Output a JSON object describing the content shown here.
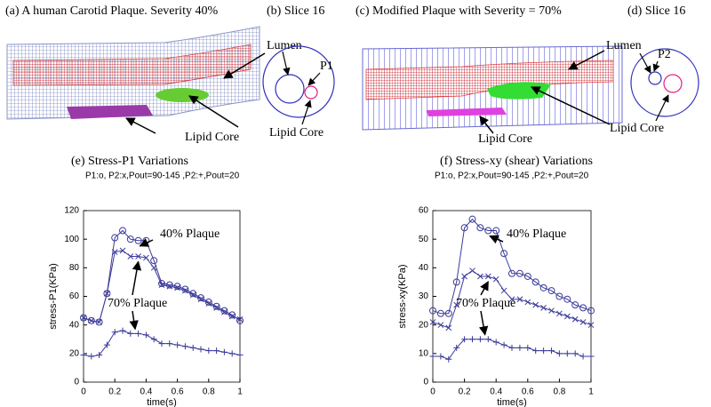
{
  "panels": [
    {
      "title": "(a) A human Carotid Plaque.  Severity 40%",
      "labels": [
        "Lumen",
        "Lipid Core"
      ]
    },
    {
      "title": "(b) Slice 16",
      "labels": [
        "P1",
        "Lipid Core"
      ]
    },
    {
      "title": "(c) Modified  Plaque with Severity = 70%",
      "labels": [
        "Lumen",
        "Lipid Core"
      ]
    },
    {
      "title": "(d) Slice 16",
      "labels": [
        "P2",
        "Lipid Core"
      ]
    }
  ],
  "chart_data": [
    {
      "type": "line",
      "title": "(e) Stress-P1 Variations",
      "subtitle": "P1:o, P2:x,Pout=90-145 ,P2:+,Pout=20",
      "x_label": "time(s)",
      "y_label": "stress-P1(KPa)",
      "x": [
        0,
        0.05,
        0.1,
        0.15,
        0.2,
        0.25,
        0.3,
        0.35,
        0.4,
        0.45,
        0.5,
        0.55,
        0.6,
        0.65,
        0.7,
        0.75,
        0.8,
        0.85,
        0.9,
        0.95,
        1
      ],
      "series": [
        {
          "marker": "o",
          "color": "#3a3a9a",
          "values": [
            45,
            43,
            42,
            62,
            101,
            106,
            100,
            99,
            99,
            85,
            69,
            68,
            67,
            65,
            62,
            59,
            56,
            53,
            50,
            47,
            43
          ]
        },
        {
          "marker": "x",
          "color": "#3a3a9a",
          "values": [
            45,
            43,
            42,
            62,
            91,
            92,
            88,
            88,
            87,
            80,
            68,
            67,
            66,
            64,
            61,
            58,
            55,
            52,
            49,
            46,
            44
          ]
        },
        {
          "marker": "+",
          "color": "#3a3a9a",
          "values": [
            19,
            18,
            19,
            26,
            35,
            36,
            34,
            34,
            33,
            30,
            27,
            27,
            26,
            25,
            24,
            23,
            22,
            22,
            21,
            20,
            19
          ]
        }
      ],
      "annotations": [
        "40% Plaque",
        "70% Plaque"
      ],
      "xlim": [
        0,
        1
      ],
      "xticks": [
        0,
        0.2,
        0.4,
        0.6,
        0.8,
        1
      ],
      "ylim": [
        0,
        120
      ],
      "yticks": [
        0,
        20,
        40,
        60,
        80,
        100,
        120
      ]
    },
    {
      "type": "line",
      "title": "(f) Stress-xy (shear) Variations",
      "subtitle": "P1:o, P2:x,Pout=90-145 ,P2:+,Pout=20",
      "x_label": "time(s)",
      "y_label": "stress-xy(KPa)",
      "x": [
        0,
        0.05,
        0.1,
        0.15,
        0.2,
        0.25,
        0.3,
        0.35,
        0.4,
        0.45,
        0.5,
        0.55,
        0.6,
        0.65,
        0.7,
        0.75,
        0.8,
        0.85,
        0.9,
        0.95,
        1
      ],
      "series": [
        {
          "marker": "o",
          "color": "#3a3a9a",
          "values": [
            25,
            24,
            24,
            35,
            54,
            57,
            54,
            53,
            53,
            45,
            38,
            38,
            37,
            35,
            33,
            32,
            30,
            29,
            27,
            26,
            25
          ]
        },
        {
          "marker": "x",
          "color": "#3a3a9a",
          "values": [
            21,
            20,
            19,
            27,
            37,
            39,
            37,
            37,
            36,
            32,
            29,
            29,
            28,
            27,
            26,
            25,
            24,
            23,
            22,
            21,
            20
          ]
        },
        {
          "marker": "+",
          "color": "#3a3a9a",
          "values": [
            9,
            9,
            8,
            12,
            15,
            15,
            15,
            15,
            14,
            13,
            12,
            12,
            12,
            11,
            11,
            11,
            10,
            10,
            10,
            9,
            9
          ]
        }
      ],
      "annotations": [
        "40% Plaque",
        "70% Plaque"
      ],
      "xlim": [
        0,
        1
      ],
      "xticks": [
        0,
        0.2,
        0.4,
        0.6,
        0.8,
        1
      ],
      "ylim": [
        0,
        60
      ],
      "yticks": [
        0,
        10,
        20,
        30,
        40,
        50,
        60
      ]
    }
  ]
}
